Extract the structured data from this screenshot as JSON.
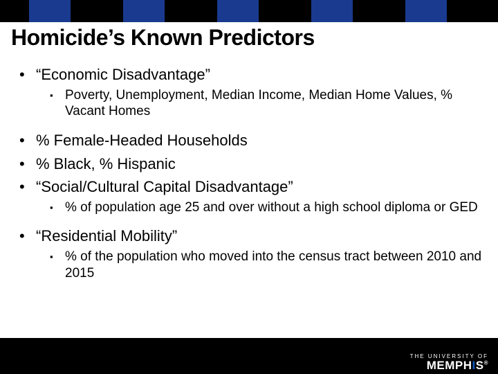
{
  "colors": {
    "topbar_bg": "#000000",
    "column_bg": "#1a3a8f",
    "title_color": "#000000",
    "text_color": "#000000",
    "footer_bg": "#000000",
    "logo_text": "#ffffff",
    "logo_accent": "#0a5cc9"
  },
  "title": "Homicide’s Known Predictors",
  "bullets": [
    {
      "level": 1,
      "text": "“Economic Disadvantage”"
    },
    {
      "level": 2,
      "text": "Poverty, Unemployment, Median Income, Median Home Values, % Vacant Homes"
    },
    {
      "level": 1,
      "text": "% Female-Headed Households"
    },
    {
      "level": 1,
      "text": "% Black, % Hispanic"
    },
    {
      "level": 1,
      "text": "“Social/Cultural Capital Disadvantage”"
    },
    {
      "level": 2,
      "text": "% of population age 25 and over without a high school diploma or GED"
    },
    {
      "level": 1,
      "text": "“Residential Mobility”"
    },
    {
      "level": 2,
      "text": "% of the population who moved into the census tract between 2010 and 2015"
    }
  ],
  "logo": {
    "line1": "THE UNIVERSITY OF",
    "line2_a": "MEMPH",
    "line2_b": "I",
    "line2_c": "S",
    "reg": "®"
  },
  "markers": {
    "lv1": "•",
    "lv2": "▪"
  }
}
